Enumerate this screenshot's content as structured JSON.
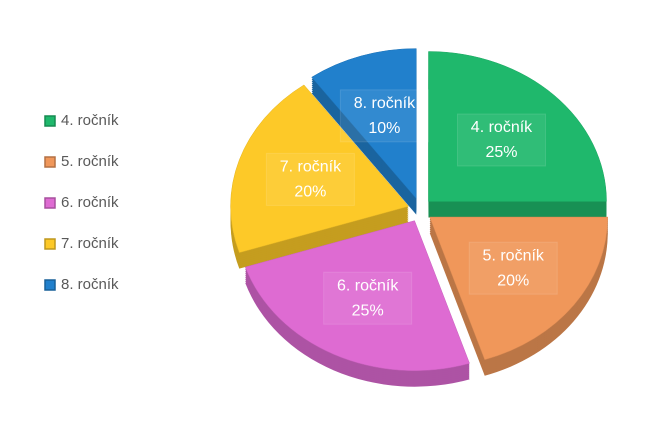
{
  "chart_data": {
    "type": "pie",
    "categories": [
      "4. ročník",
      "5. ročník",
      "6. ročník",
      "7. ročník",
      "8. ročník"
    ],
    "values": [
      25,
      20,
      25,
      20,
      10
    ],
    "value_labels": [
      "25%",
      "20%",
      "25%",
      "20%",
      "10%"
    ],
    "colors": [
      "#1fb86c",
      "#f0975a",
      "#de6bd2",
      "#fdc928",
      "#2180cc"
    ],
    "legend": "left"
  }
}
